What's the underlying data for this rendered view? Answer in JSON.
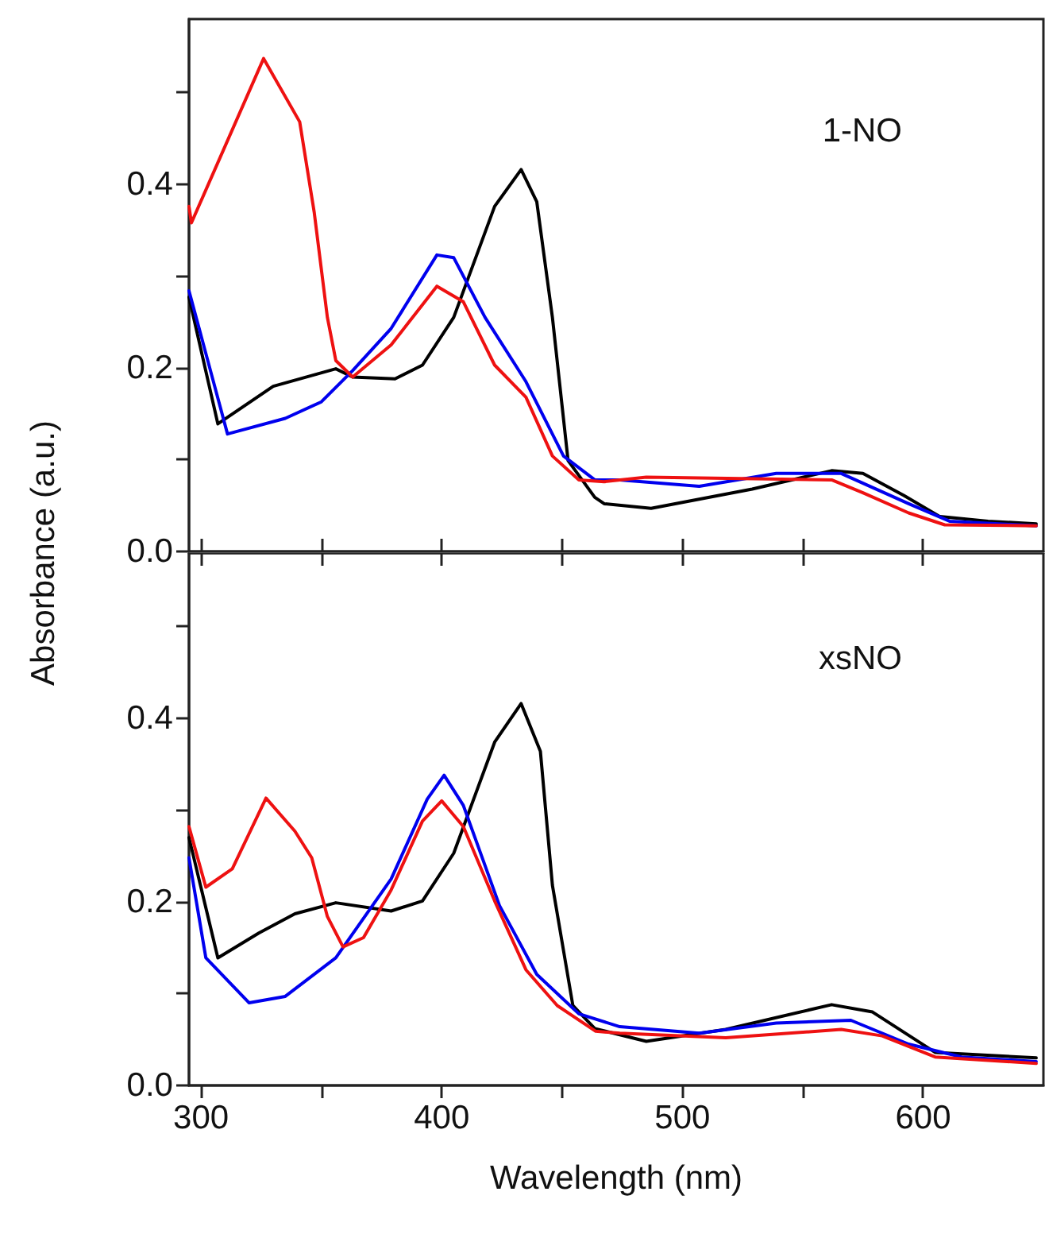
{
  "chart_data": [
    {
      "type": "line",
      "ylabel": "Absorbance (a.u.)",
      "annotations": [
        "1-NO"
      ],
      "tick_labels": "y",
      "grid": false,
      "marker": "none",
      "xlim": [
        295,
        650
      ],
      "xticks": [
        300,
        {
          "value": 350,
          "label": null
        },
        400,
        {
          "value": 450,
          "label": null
        },
        500,
        {
          "value": 550,
          "label": null
        },
        600
      ],
      "ylim": [
        0,
        0.58
      ],
      "yticks": [
        {
          "value": 0,
          "label": "0.0"
        },
        {
          "value": 0.1,
          "label": null
        },
        {
          "value": 0.2,
          "label": "0.2"
        },
        {
          "value": 0.3,
          "label": null
        },
        {
          "value": 0.4,
          "label": "0.4"
        },
        {
          "value": 0.5,
          "label": null
        }
      ],
      "series": [
        {
          "color": "#000000",
          "x": [
            295,
            307,
            330,
            356,
            363,
            380.6,
            392,
            405,
            422,
            433,
            439.5,
            446,
            452.5,
            463.6,
            467.5,
            487,
            529,
            562,
            575,
            592,
            607,
            627,
            647
          ],
          "values": [
            0.277,
            0.139,
            0.18,
            0.199,
            0.19,
            0.188,
            0.203,
            0.255,
            0.376,
            0.416,
            0.381,
            0.255,
            0.099,
            0.059,
            0.052,
            0.047,
            0.068,
            0.088,
            0.085,
            0.061,
            0.038,
            0.033,
            0.03
          ]
        },
        {
          "color": "#0000ee",
          "x": [
            295,
            311,
            335,
            350,
            363,
            379,
            398,
            405,
            418,
            435,
            450.6,
            463.6,
            474,
            507,
            539,
            566,
            594,
            611,
            647
          ],
          "values": [
            0.284,
            0.128,
            0.145,
            0.163,
            0.197,
            0.243,
            0.323,
            0.32,
            0.255,
            0.185,
            0.104,
            0.078,
            0.078,
            0.071,
            0.085,
            0.085,
            0.052,
            0.033,
            0.028
          ]
        },
        {
          "color": "#ee1111",
          "x": [
            295,
            296,
            326,
            341,
            347,
            352.5,
            356,
            363,
            379,
            398,
            409,
            422,
            435,
            446,
            457,
            467.5,
            485,
            562,
            575,
            594,
            609,
            647
          ],
          "values": [
            0.376,
            0.358,
            0.537,
            0.468,
            0.37,
            0.255,
            0.208,
            0.19,
            0.225,
            0.289,
            0.272,
            0.203,
            0.168,
            0.104,
            0.078,
            0.076,
            0.081,
            0.078,
            0.064,
            0.042,
            0.029,
            0.028
          ]
        }
      ]
    },
    {
      "type": "line",
      "xlabel": "Wavelength (nm)",
      "annotations": [
        "xsNO"
      ],
      "grid": false,
      "marker": "none",
      "xlim": [
        295,
        650
      ],
      "xticks": [
        300,
        {
          "value": 350,
          "label": null
        },
        400,
        {
          "value": 450,
          "label": null
        },
        500,
        {
          "value": 550,
          "label": null
        },
        600
      ],
      "ylim": [
        0,
        0.58
      ],
      "yticks": [
        {
          "value": 0,
          "label": "0.0"
        },
        {
          "value": 0.1,
          "label": null
        },
        {
          "value": 0.2,
          "label": "0.2"
        },
        {
          "value": 0.3,
          "label": null
        },
        {
          "value": 0.4,
          "label": "0.4"
        },
        {
          "value": 0.5,
          "label": null
        }
      ],
      "series": [
        {
          "color": "#000000",
          "x": [
            295,
            307,
            324,
            339,
            356,
            379,
            392,
            405,
            422,
            433,
            441,
            446,
            454.5,
            463.6,
            485,
            518,
            562,
            579,
            605,
            647
          ],
          "values": [
            0.27,
            0.139,
            0.166,
            0.187,
            0.199,
            0.19,
            0.201,
            0.253,
            0.374,
            0.416,
            0.364,
            0.218,
            0.087,
            0.062,
            0.048,
            0.061,
            0.088,
            0.08,
            0.036,
            0.03
          ]
        },
        {
          "color": "#0000ee",
          "x": [
            295,
            302,
            320,
            335,
            356,
            379,
            394,
            401,
            409,
            424,
            439.5,
            457,
            474,
            507,
            539,
            570,
            594,
            616,
            647
          ],
          "values": [
            0.248,
            0.139,
            0.09,
            0.097,
            0.139,
            0.225,
            0.312,
            0.338,
            0.305,
            0.196,
            0.121,
            0.078,
            0.064,
            0.057,
            0.068,
            0.071,
            0.045,
            0.031,
            0.026
          ]
        },
        {
          "color": "#ee1111",
          "x": [
            295,
            302,
            313,
            327,
            339,
            346,
            352.5,
            359,
            367.5,
            379,
            392,
            400,
            409,
            422,
            435,
            448,
            464,
            474,
            518,
            566,
            583,
            605,
            647
          ],
          "values": [
            0.282,
            0.216,
            0.236,
            0.313,
            0.277,
            0.248,
            0.184,
            0.151,
            0.161,
            0.213,
            0.288,
            0.31,
            0.282,
            0.201,
            0.126,
            0.087,
            0.059,
            0.057,
            0.052,
            0.061,
            0.054,
            0.031,
            0.024
          ]
        }
      ]
    }
  ]
}
